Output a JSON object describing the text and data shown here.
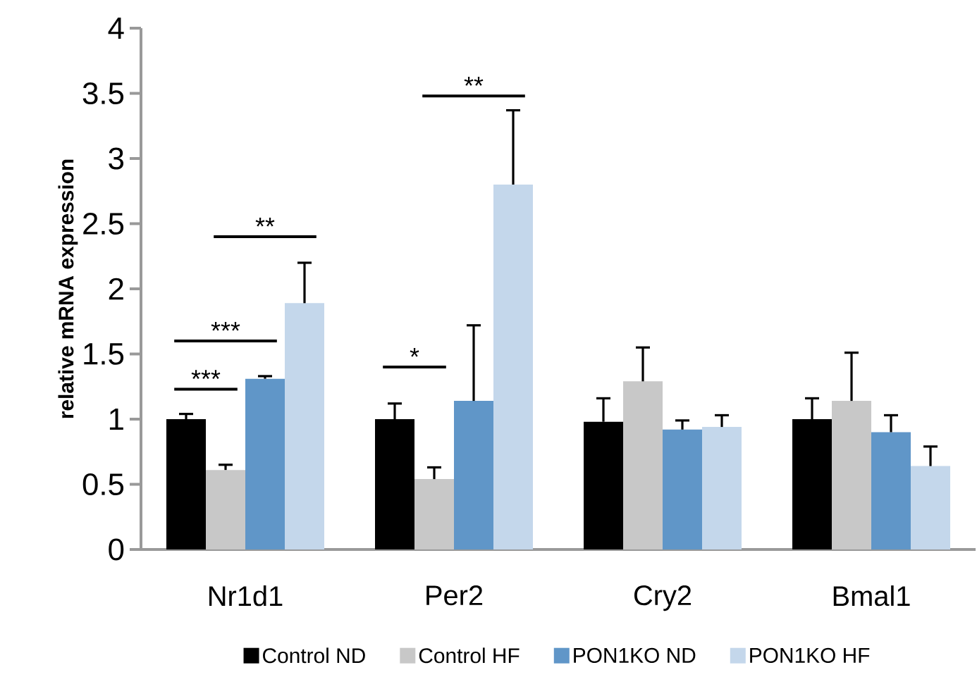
{
  "chart_data": {
    "type": "bar",
    "ylabel": "relative mRNA expression",
    "categories": [
      "Nr1d1",
      "Per2",
      "Cry2",
      "Bmal1"
    ],
    "series": [
      {
        "name": "Control ND",
        "color": "#000000",
        "values": [
          1.0,
          1.0,
          0.98,
          1.0
        ],
        "errors": [
          0.04,
          0.12,
          0.18,
          0.16
        ]
      },
      {
        "name": "Control HF",
        "color": "#c8c8c8",
        "values": [
          0.61,
          0.54,
          1.29,
          1.14
        ],
        "errors": [
          0.04,
          0.09,
          0.26,
          0.37
        ]
      },
      {
        "name": "PON1KO ND",
        "color": "#6096c8",
        "values": [
          1.31,
          1.14,
          0.92,
          0.9
        ],
        "errors": [
          0.02,
          0.58,
          0.07,
          0.13
        ]
      },
      {
        "name": "PON1KO HF",
        "color": "#c4d7eb",
        "values": [
          1.89,
          2.8,
          0.94,
          0.64
        ],
        "errors": [
          0.31,
          0.57,
          0.09,
          0.15
        ]
      }
    ],
    "ylim": [
      0,
      4
    ],
    "yticks": [
      0,
      0.5,
      1,
      1.5,
      2,
      2.5,
      3,
      3.5,
      4
    ],
    "annotations": [
      "***",
      "***",
      "**",
      "*",
      "**"
    ],
    "legend": "bottom"
  }
}
